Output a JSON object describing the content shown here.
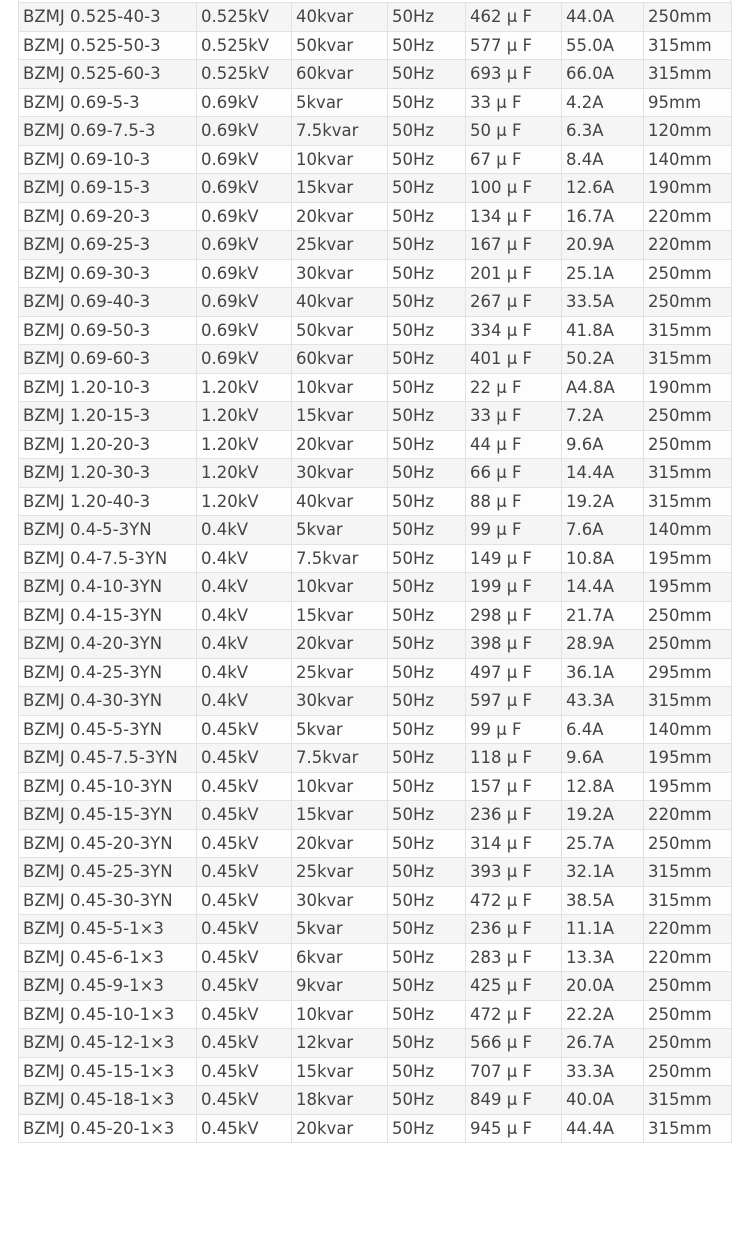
{
  "table": {
    "rows": [
      [
        "BZMJ 0.525-40-3",
        "0.525kV",
        "40kvar",
        "50Hz",
        "462 μ F",
        "44.0A",
        "250mm"
      ],
      [
        "BZMJ 0.525-50-3",
        "0.525kV",
        "50kvar",
        "50Hz",
        "577 μ F",
        "55.0A",
        "315mm"
      ],
      [
        "BZMJ 0.525-60-3",
        "0.525kV",
        "60kvar",
        "50Hz",
        "693 μ F",
        "66.0A",
        "315mm"
      ],
      [
        "BZMJ 0.69-5-3",
        "0.69kV",
        "5kvar",
        "50Hz",
        "33 μ F",
        "4.2A",
        "95mm"
      ],
      [
        "BZMJ 0.69-7.5-3",
        "0.69kV",
        "7.5kvar",
        "50Hz",
        "50 μ F",
        "6.3A",
        "120mm"
      ],
      [
        "BZMJ 0.69-10-3",
        "0.69kV",
        "10kvar",
        "50Hz",
        "67 μ F",
        "8.4A",
        "140mm"
      ],
      [
        "BZMJ 0.69-15-3",
        "0.69kV",
        "15kvar",
        "50Hz",
        "100 μ F",
        "12.6A",
        "190mm"
      ],
      [
        "BZMJ 0.69-20-3",
        "0.69kV",
        "20kvar",
        "50Hz",
        "134 μ F",
        "16.7A",
        "220mm"
      ],
      [
        "BZMJ 0.69-25-3",
        "0.69kV",
        "25kvar",
        "50Hz",
        "167 μ F",
        "20.9A",
        "220mm"
      ],
      [
        "BZMJ 0.69-30-3",
        "0.69kV",
        "30kvar",
        "50Hz",
        "201 μ F",
        "25.1A",
        "250mm"
      ],
      [
        "BZMJ 0.69-40-3",
        "0.69kV",
        "40kvar",
        "50Hz",
        "267 μ F",
        "33.5A",
        "250mm"
      ],
      [
        "BZMJ 0.69-50-3",
        "0.69kV",
        "50kvar",
        "50Hz",
        "334 μ F",
        "41.8A",
        "315mm"
      ],
      [
        "BZMJ 0.69-60-3",
        "0.69kV",
        "60kvar",
        "50Hz",
        "401 μ F",
        "50.2A",
        "315mm"
      ],
      [
        "BZMJ 1.20-10-3",
        "1.20kV",
        "10kvar",
        "50Hz",
        "22 μ F",
        "A4.8A",
        "190mm"
      ],
      [
        "BZMJ 1.20-15-3",
        "1.20kV",
        "15kvar",
        "50Hz",
        "33 μ F",
        "7.2A",
        "250mm"
      ],
      [
        "BZMJ 1.20-20-3",
        "1.20kV",
        "20kvar",
        "50Hz",
        "44 μ F",
        "9.6A",
        "250mm"
      ],
      [
        "BZMJ 1.20-30-3",
        "1.20kV",
        "30kvar",
        "50Hz",
        "66 μ F",
        "14.4A",
        "315mm"
      ],
      [
        "BZMJ 1.20-40-3",
        "1.20kV",
        "40kvar",
        "50Hz",
        "88 μ F",
        "19.2A",
        "315mm"
      ],
      [
        "BZMJ 0.4-5-3YN",
        "0.4kV",
        "5kvar",
        "50Hz",
        "99 μ F",
        "7.6A",
        "140mm"
      ],
      [
        "BZMJ 0.4-7.5-3YN",
        "0.4kV",
        "7.5kvar",
        "50Hz",
        "149 μ F",
        "10.8A",
        "195mm"
      ],
      [
        "BZMJ 0.4-10-3YN",
        "0.4kV",
        "10kvar",
        "50Hz",
        "199 μ F",
        "14.4A",
        "195mm"
      ],
      [
        "BZMJ 0.4-15-3YN",
        "0.4kV",
        "15kvar",
        "50Hz",
        "298 μ F",
        "21.7A",
        "250mm"
      ],
      [
        "BZMJ 0.4-20-3YN",
        "0.4kV",
        "20kvar",
        "50Hz",
        "398 μ F",
        "28.9A",
        "250mm"
      ],
      [
        "BZMJ 0.4-25-3YN",
        "0.4kV",
        "25kvar",
        "50Hz",
        "497 μ F",
        "36.1A",
        "295mm"
      ],
      [
        "BZMJ 0.4-30-3YN",
        "0.4kV",
        "30kvar",
        "50Hz",
        "597 μ F",
        "43.3A",
        "315mm"
      ],
      [
        "BZMJ 0.45-5-3YN",
        "0.45kV",
        "5kvar",
        "50Hz",
        "99 μ F",
        "6.4A",
        "140mm"
      ],
      [
        "BZMJ 0.45-7.5-3YN",
        "0.45kV",
        "7.5kvar",
        "50Hz",
        "118 μ F",
        "9.6A",
        "195mm"
      ],
      [
        "BZMJ 0.45-10-3YN",
        "0.45kV",
        "10kvar",
        "50Hz",
        "157 μ F",
        "12.8A",
        "195mm"
      ],
      [
        "BZMJ 0.45-15-3YN",
        "0.45kV",
        "15kvar",
        "50Hz",
        "236 μ F",
        "19.2A",
        "220mm"
      ],
      [
        "BZMJ 0.45-20-3YN",
        "0.45kV",
        "20kvar",
        "50Hz",
        "314 μ F",
        "25.7A",
        "250mm"
      ],
      [
        "BZMJ 0.45-25-3YN",
        "0.45kV",
        "25kvar",
        "50Hz",
        "393 μ F",
        "32.1A",
        "315mm"
      ],
      [
        "BZMJ 0.45-30-3YN",
        "0.45kV",
        "30kvar",
        "50Hz",
        "472 μ F",
        "38.5A",
        "315mm"
      ],
      [
        "BZMJ 0.45-5-1×3",
        "0.45kV",
        "5kvar",
        "50Hz",
        "236 μ F",
        "11.1A",
        "220mm"
      ],
      [
        "BZMJ 0.45-6-1×3",
        "0.45kV",
        "6kvar",
        "50Hz",
        "283 μ F",
        "13.3A",
        "220mm"
      ],
      [
        "BZMJ 0.45-9-1×3",
        "0.45kV",
        "9kvar",
        "50Hz",
        "425 μ F",
        "20.0A",
        "250mm"
      ],
      [
        "BZMJ 0.45-10-1×3",
        "0.45kV",
        "10kvar",
        "50Hz",
        "472 μ F",
        "22.2A",
        "250mm"
      ],
      [
        "BZMJ 0.45-12-1×3",
        "0.45kV",
        "12kvar",
        "50Hz",
        "566 μ F",
        "26.7A",
        "250mm"
      ],
      [
        "BZMJ 0.45-15-1×3",
        "0.45kV",
        "15kvar",
        "50Hz",
        "707 μ F",
        "33.3A",
        "250mm"
      ],
      [
        "BZMJ 0.45-18-1×3",
        "0.45kV",
        "18kvar",
        "50Hz",
        "849 μ F",
        "40.0A",
        "315mm"
      ],
      [
        "BZMJ 0.45-20-1×3",
        "0.45kV",
        "20kvar",
        "50Hz",
        "945 μ F",
        "44.4A",
        "315mm"
      ]
    ]
  }
}
